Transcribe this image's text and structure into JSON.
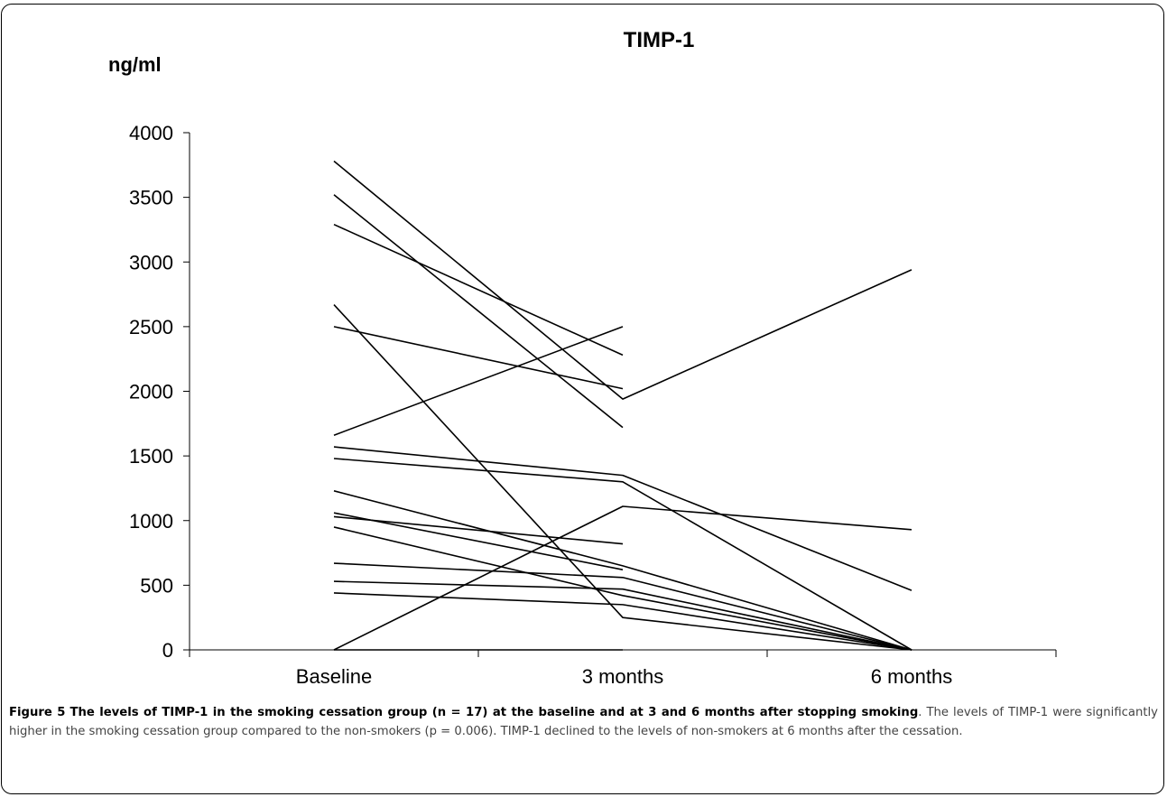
{
  "chart_data": {
    "type": "line",
    "title": "TIMP-1",
    "ylabel": "ng/ml",
    "xlabel": "",
    "categories": [
      "Baseline",
      "3 months",
      "6 months"
    ],
    "ylim": [
      0,
      4000
    ],
    "yticks": [
      0,
      500,
      1000,
      1500,
      2000,
      2500,
      3000,
      3500,
      4000
    ],
    "series": [
      {
        "values": [
          3780,
          1940,
          2940
        ]
      },
      {
        "values": [
          3520,
          1720,
          null
        ]
      },
      {
        "values": [
          3290,
          2280,
          null
        ]
      },
      {
        "values": [
          2670,
          250,
          0
        ]
      },
      {
        "values": [
          2500,
          2020,
          null
        ]
      },
      {
        "values": [
          1660,
          2500,
          null
        ]
      },
      {
        "values": [
          1570,
          1350,
          460
        ]
      },
      {
        "values": [
          1480,
          1300,
          0
        ]
      },
      {
        "values": [
          1230,
          650,
          0
        ]
      },
      {
        "values": [
          1060,
          620,
          null
        ]
      },
      {
        "values": [
          1030,
          820,
          null
        ]
      },
      {
        "values": [
          950,
          420,
          0
        ]
      },
      {
        "values": [
          670,
          560,
          0
        ]
      },
      {
        "values": [
          530,
          470,
          0
        ]
      },
      {
        "values": [
          440,
          350,
          0
        ]
      },
      {
        "values": [
          0,
          1110,
          930
        ]
      },
      {
        "values": [
          0,
          0,
          null
        ]
      }
    ],
    "grid": false,
    "legend": "none",
    "line_color": "#000000"
  },
  "caption": {
    "label": "Figure 5",
    "title": "The levels of TIMP-1 in the smoking cessation group (n = 17) at the baseline and at 3 and 6 months after stopping smoking",
    "body": "The levels of TIMP-1 were significantly higher in the smoking cessation group compared to the non-smokers (p = 0.006). TIMP-1 declined to the levels of non-smokers at 6 months after the cessation."
  }
}
